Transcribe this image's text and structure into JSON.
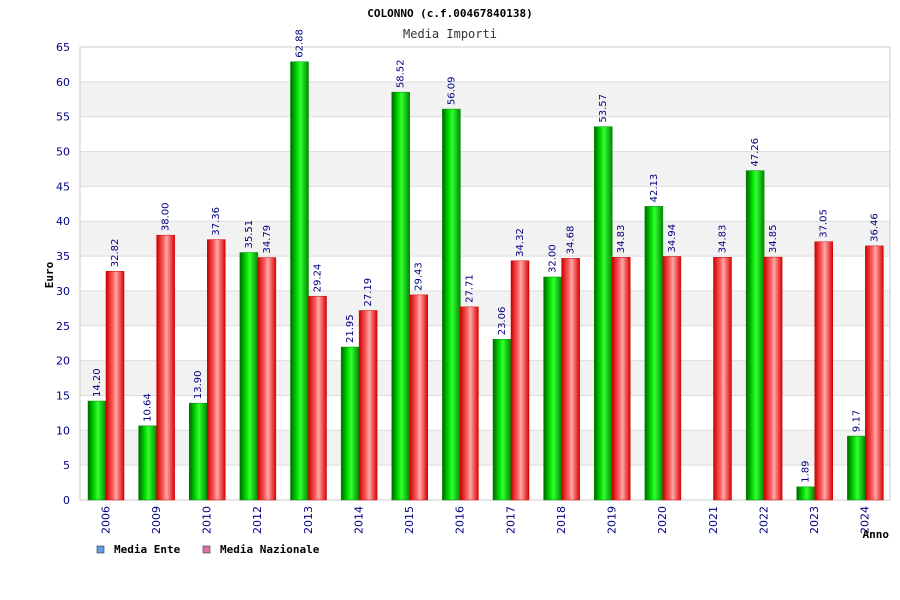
{
  "chart_data": {
    "type": "bar",
    "title": "COLONNO (c.f.00467840138)",
    "subtitle": "Media Importi",
    "xlabel": "Anno",
    "ylabel": "Euro",
    "ylim": [
      0,
      65
    ],
    "yticks": [
      "0",
      "5",
      "10",
      "15",
      "20",
      "25",
      "30",
      "35",
      "40",
      "45",
      "50",
      "55",
      "60",
      "65"
    ],
    "grid": true,
    "legend_position": "bottom-left",
    "categories": [
      "2006",
      "2009",
      "2010",
      "2012",
      "2013",
      "2014",
      "2015",
      "2016",
      "2017",
      "2018",
      "2019",
      "2020",
      "2021",
      "2022",
      "2023",
      "2024"
    ],
    "series": [
      {
        "name": "Media Ente",
        "color": "#00cc00",
        "legend_color": "#5aa0e6",
        "values": [
          14.2,
          10.64,
          13.9,
          35.51,
          62.88,
          21.95,
          58.52,
          56.09,
          23.06,
          32.0,
          53.57,
          42.13,
          null,
          47.26,
          1.89,
          9.17
        ],
        "labels": [
          "14.20",
          "10.64",
          "13.90",
          "35.51",
          "62.88",
          "21.95",
          "58.52",
          "56.09",
          "23.06",
          "32.00",
          "53.57",
          "42.13",
          null,
          "47.26",
          "1.89",
          "9.17"
        ]
      },
      {
        "name": "Media Nazionale",
        "color": "#ee1111",
        "legend_color": "#e070a8",
        "values": [
          32.82,
          38.0,
          37.36,
          34.79,
          29.24,
          27.19,
          29.43,
          27.71,
          34.32,
          34.68,
          34.83,
          34.94,
          34.83,
          34.85,
          37.05,
          36.46
        ],
        "labels": [
          "32.82",
          "38.00",
          "37.36",
          "34.79",
          "29.24",
          "27.19",
          "29.43",
          "27.71",
          "34.32",
          "34.68",
          "34.83",
          "34.94",
          "34.83",
          "34.85",
          "37.05",
          "36.46"
        ]
      }
    ]
  }
}
